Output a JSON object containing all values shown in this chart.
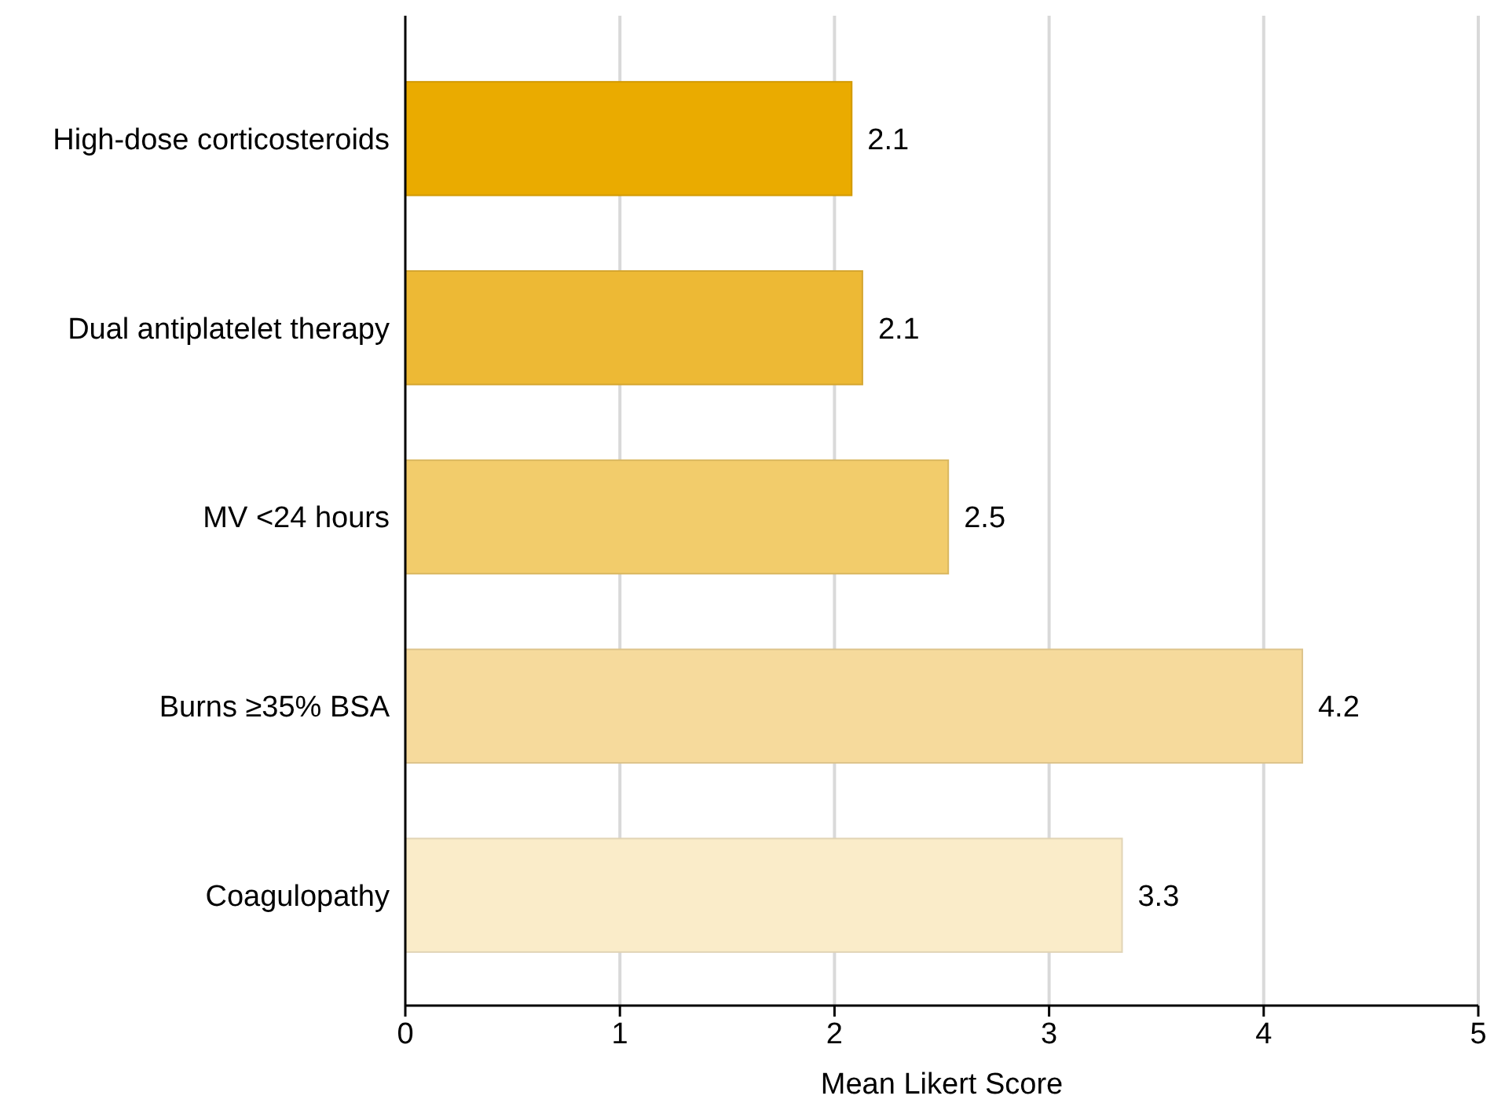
{
  "chart_data": {
    "type": "bar",
    "orientation": "horizontal",
    "xlabel": "Mean Likert Score",
    "categories": [
      "High-dose corticosteroids",
      "Dual antiplatelet therapy",
      "MV <24 hours",
      "Burns ≥35% BSA",
      "Coagulopathy"
    ],
    "values": [
      2.08,
      2.13,
      2.53,
      4.18,
      3.34
    ],
    "value_labels": [
      "2.1",
      "2.1",
      "2.5",
      "4.2",
      "3.3"
    ],
    "colors": [
      "#eaab00",
      "#edb935",
      "#f2cc6b",
      "#f6da9c",
      "#faecc9"
    ],
    "xlim": [
      0,
      5
    ],
    "xticks": [
      0,
      1,
      2,
      3,
      4,
      5
    ],
    "grid": "x"
  }
}
